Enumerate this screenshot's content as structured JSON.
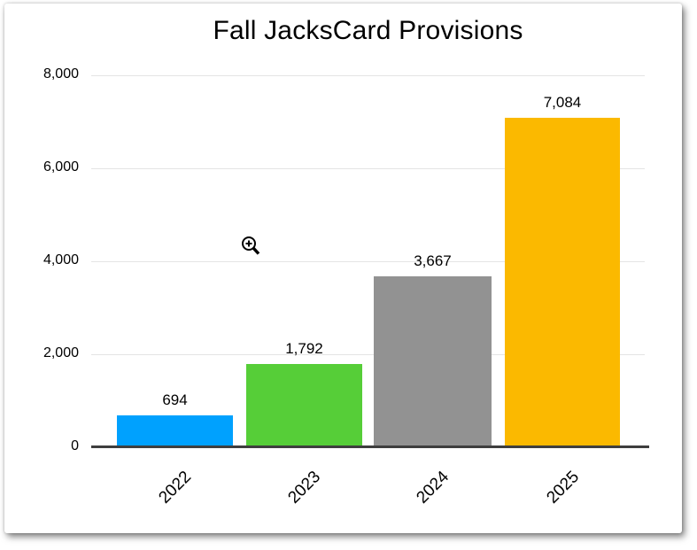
{
  "title": "Fall JacksCard Provisions",
  "cursor_icon": "zoom-in-cursor",
  "chart_data": {
    "type": "bar",
    "title": "Fall JacksCard Provisions",
    "categories": [
      "2022",
      "2023",
      "2024",
      "2025"
    ],
    "values": [
      694,
      1792,
      3667,
      7084
    ],
    "value_labels": [
      "694",
      "1,792",
      "3,667",
      "7,084"
    ],
    "bar_colors": [
      "#00A1FE",
      "#56CE38",
      "#929292",
      "#FBB900"
    ],
    "xlabel": "",
    "ylabel": "",
    "ylim": [
      0,
      8000
    ],
    "ytick_values": [
      8000,
      6000,
      4000,
      2000,
      0
    ],
    "ytick_labels": [
      "8,000",
      "6,000",
      "4,000",
      "2,000",
      "0"
    ],
    "grid": "horizontal",
    "legend": "none",
    "axis_line_color": "#3e3e3e",
    "gridline_color": "#e4e4e4"
  }
}
